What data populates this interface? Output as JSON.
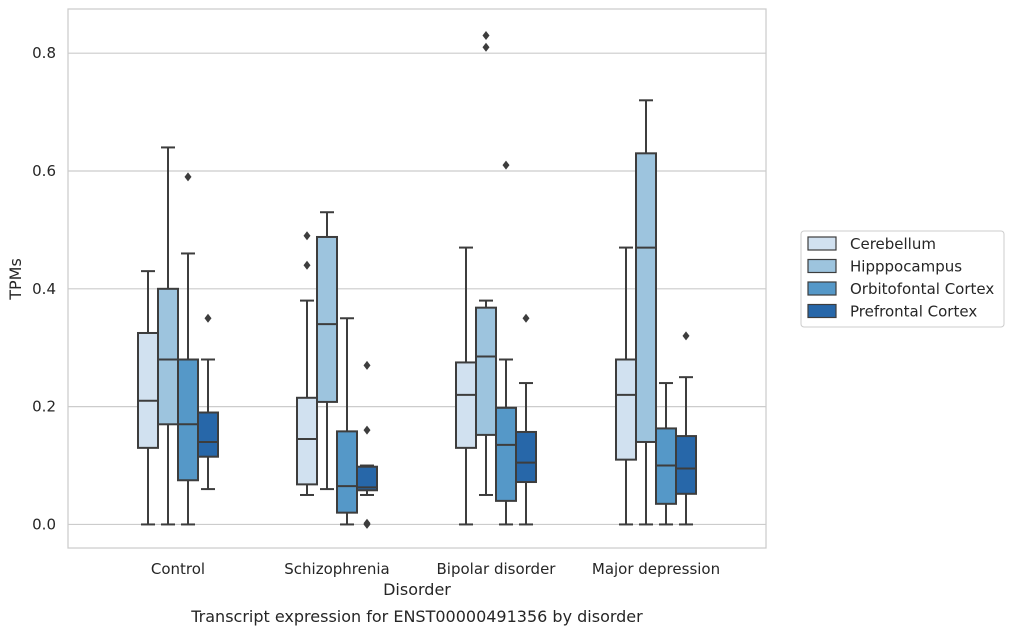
{
  "chart_data": {
    "type": "box",
    "xlabel": "Disorder",
    "ylabel": "TPMs",
    "caption": "Transcript expression for ENST00000491356 by disorder",
    "ylim": [
      -0.04,
      0.875
    ],
    "yticks": [
      0.0,
      0.2,
      0.4,
      0.6,
      0.8
    ],
    "ytick_labels": [
      "0.0",
      "0.2",
      "0.4",
      "0.6",
      "0.8"
    ],
    "categories": [
      "Control",
      "Schizophrenia",
      "Bipolar disorder",
      "Major depression"
    ],
    "grid": "horizontal",
    "legend_position": "right",
    "series": [
      {
        "name": "Cerebellum",
        "color": "#d1e1f0",
        "boxes": [
          {
            "min": 0.0,
            "q1": 0.13,
            "median": 0.21,
            "q3": 0.325,
            "max": 0.43,
            "outliers": []
          },
          {
            "min": 0.05,
            "q1": 0.068,
            "median": 0.145,
            "q3": 0.215,
            "max": 0.38,
            "outliers": [
              0.44,
              0.49
            ]
          },
          {
            "min": 0.0,
            "q1": 0.13,
            "median": 0.22,
            "q3": 0.275,
            "max": 0.47,
            "outliers": []
          },
          {
            "min": 0.0,
            "q1": 0.11,
            "median": 0.22,
            "q3": 0.28,
            "max": 0.47,
            "outliers": []
          }
        ]
      },
      {
        "name": "Hipppocampus",
        "color": "#9dc4de",
        "boxes": [
          {
            "min": 0.0,
            "q1": 0.17,
            "median": 0.28,
            "q3": 0.4,
            "max": 0.64,
            "outliers": []
          },
          {
            "min": 0.06,
            "q1": 0.208,
            "median": 0.34,
            "q3": 0.488,
            "max": 0.53,
            "outliers": []
          },
          {
            "min": 0.05,
            "q1": 0.152,
            "median": 0.285,
            "q3": 0.368,
            "max": 0.38,
            "outliers": [
              0.81,
              0.83
            ]
          },
          {
            "min": 0.0,
            "q1": 0.14,
            "median": 0.47,
            "q3": 0.63,
            "max": 0.72,
            "outliers": []
          }
        ]
      },
      {
        "name": "Orbitofontal Cortex",
        "color": "#5598c8",
        "boxes": [
          {
            "min": 0.0,
            "q1": 0.075,
            "median": 0.17,
            "q3": 0.28,
            "max": 0.46,
            "outliers": [
              0.59
            ]
          },
          {
            "min": 0.0,
            "q1": 0.02,
            "median": 0.065,
            "q3": 0.158,
            "max": 0.35,
            "outliers": []
          },
          {
            "min": 0.0,
            "q1": 0.04,
            "median": 0.135,
            "q3": 0.198,
            "max": 0.28,
            "outliers": [
              0.61
            ]
          },
          {
            "min": 0.0,
            "q1": 0.035,
            "median": 0.1,
            "q3": 0.163,
            "max": 0.24,
            "outliers": []
          }
        ]
      },
      {
        "name": "Prefrontal Cortex",
        "color": "#2767a9",
        "boxes": [
          {
            "min": 0.06,
            "q1": 0.115,
            "median": 0.14,
            "q3": 0.19,
            "max": 0.28,
            "outliers": [
              0.35
            ]
          },
          {
            "min": 0.05,
            "q1": 0.058,
            "median": 0.063,
            "q3": 0.098,
            "max": 0.1,
            "outliers": [
              0.0,
              0.002,
              0.16,
              0.27
            ]
          },
          {
            "min": 0.0,
            "q1": 0.072,
            "median": 0.105,
            "q3": 0.157,
            "max": 0.24,
            "outliers": [
              0.35
            ]
          },
          {
            "min": 0.0,
            "q1": 0.052,
            "median": 0.095,
            "q3": 0.15,
            "max": 0.25,
            "outliers": [
              0.32
            ]
          }
        ]
      }
    ]
  }
}
